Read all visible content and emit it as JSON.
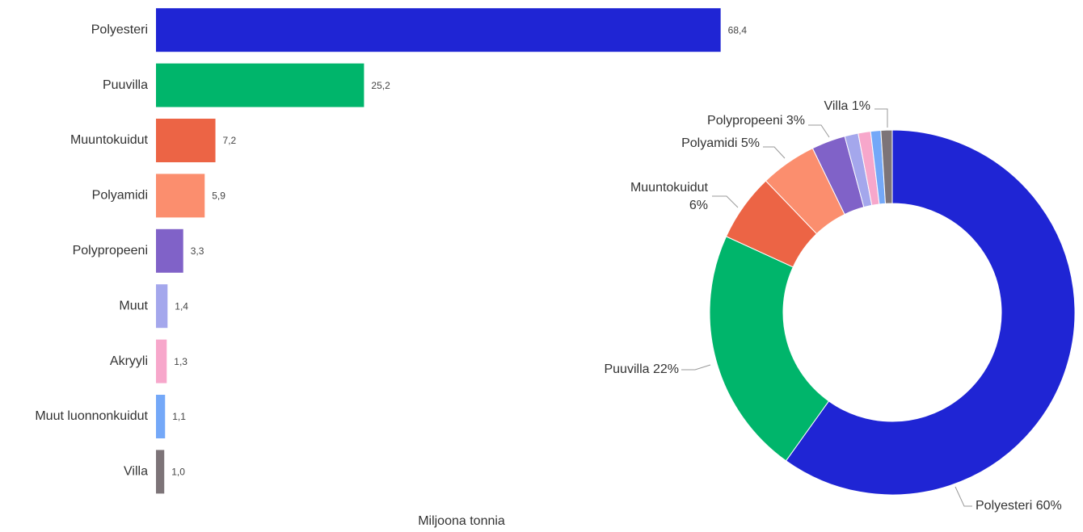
{
  "chart_data": [
    {
      "type": "hbar",
      "categories": [
        "Polyesteri",
        "Puuvilla",
        "Muuntokuidut",
        "Polyamidi",
        "Polypropeeni",
        "Muut",
        "Akryyli",
        "Muut luonnonkuidut",
        "Villa"
      ],
      "values": [
        68.4,
        25.2,
        7.2,
        5.9,
        3.3,
        1.4,
        1.3,
        1.1,
        1.0
      ],
      "value_labels": [
        "68,4",
        "25,2",
        "7,2",
        "5,9",
        "3,3",
        "1,4",
        "1,3",
        "1,1",
        "1,0"
      ],
      "colors": [
        "#1f25d4",
        "#00b56b",
        "#ec6445",
        "#fb8e6e",
        "#8062c8",
        "#a4a7ec",
        "#f7a7cb",
        "#74a8f8",
        "#7d7478"
      ],
      "xlabel": "Miljoona tonnia",
      "xlim": [
        0,
        70
      ]
    },
    {
      "type": "donut",
      "categories": [
        "Polyesteri",
        "Puuvilla",
        "Muuntokuidut",
        "Polyamidi",
        "Polypropeeni",
        null,
        null,
        null,
        "Villa"
      ],
      "values": [
        60,
        22,
        6,
        5,
        3,
        1.2,
        1.1,
        0.9,
        1
      ],
      "value_labels": [
        "60%",
        "22%",
        "6%",
        "5%",
        "3%",
        null,
        null,
        null,
        "1%"
      ],
      "colors": [
        "#1f25d4",
        "#00b56b",
        "#ec6445",
        "#fb8e6e",
        "#8062c8",
        "#a4a7ec",
        "#f7a7cb",
        "#74a8f8",
        "#7d7478"
      ]
    }
  ]
}
